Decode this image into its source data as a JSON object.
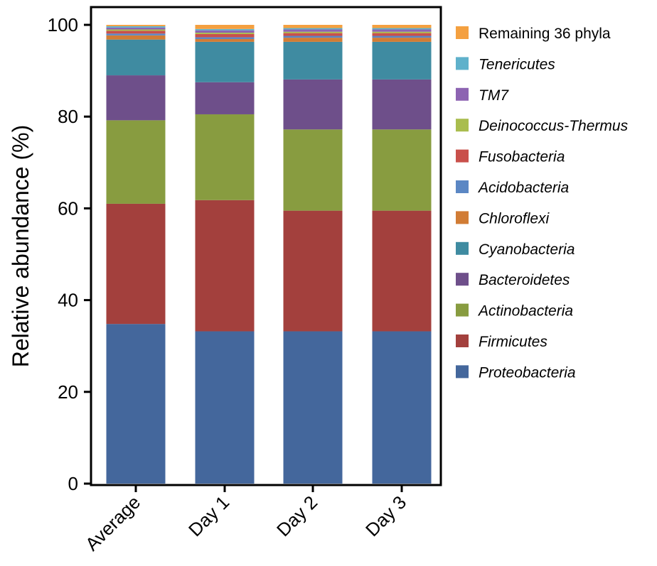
{
  "chart_data": {
    "type": "bar",
    "stacked": true,
    "title": "",
    "xlabel": "",
    "ylabel": "Relative abundance (%)",
    "ylim": [
      0,
      100
    ],
    "yticks": [
      0,
      20,
      40,
      60,
      80,
      100
    ],
    "categories": [
      "Average",
      "Day 1",
      "Day 2",
      "Day 3"
    ],
    "grid": false,
    "legend_position": "right",
    "series": [
      {
        "name": "Proteobacteria",
        "color": "#44679c",
        "italic": true,
        "values": [
          34.8,
          33.2,
          33.2,
          33.2
        ]
      },
      {
        "name": "Firmicutes",
        "color": "#a3403d",
        "italic": true,
        "values": [
          26.2,
          28.6,
          26.3,
          26.3
        ]
      },
      {
        "name": "Actinobacteria",
        "color": "#889c40",
        "italic": true,
        "values": [
          18.2,
          18.7,
          17.7,
          17.7
        ]
      },
      {
        "name": "Bacteroidetes",
        "color": "#6e4f8a",
        "italic": true,
        "values": [
          9.8,
          7.0,
          10.9,
          10.9
        ]
      },
      {
        "name": "Cyanobacteria",
        "color": "#3f8ba1",
        "italic": true,
        "values": [
          7.8,
          8.8,
          8.2,
          8.2
        ]
      },
      {
        "name": "Chloroflexi",
        "color": "#d17c35",
        "italic": true,
        "values": [
          0.9,
          0.6,
          0.9,
          0.9
        ]
      },
      {
        "name": "Acidobacteria",
        "color": "#5b87c4",
        "italic": true,
        "values": [
          0.4,
          0.4,
          0.4,
          0.4
        ]
      },
      {
        "name": "Fusobacteria",
        "color": "#c9504b",
        "italic": true,
        "values": [
          0.6,
          0.7,
          0.6,
          0.6
        ]
      },
      {
        "name": "Deinococcus-Thermus",
        "color": "#a9bd4e",
        "italic": true,
        "values": [
          0.3,
          0.3,
          0.3,
          0.3
        ]
      },
      {
        "name": "TM7",
        "color": "#8d64b2",
        "italic": true,
        "values": [
          0.4,
          0.5,
          0.5,
          0.5
        ]
      },
      {
        "name": "Tenericutes",
        "color": "#5fb1cb",
        "italic": true,
        "values": [
          0.3,
          0.3,
          0.3,
          0.3
        ]
      },
      {
        "name": "Remaining 36 phyla",
        "color": "#f4a040",
        "italic": false,
        "values": [
          0.3,
          0.9,
          0.7,
          0.7
        ]
      }
    ]
  }
}
